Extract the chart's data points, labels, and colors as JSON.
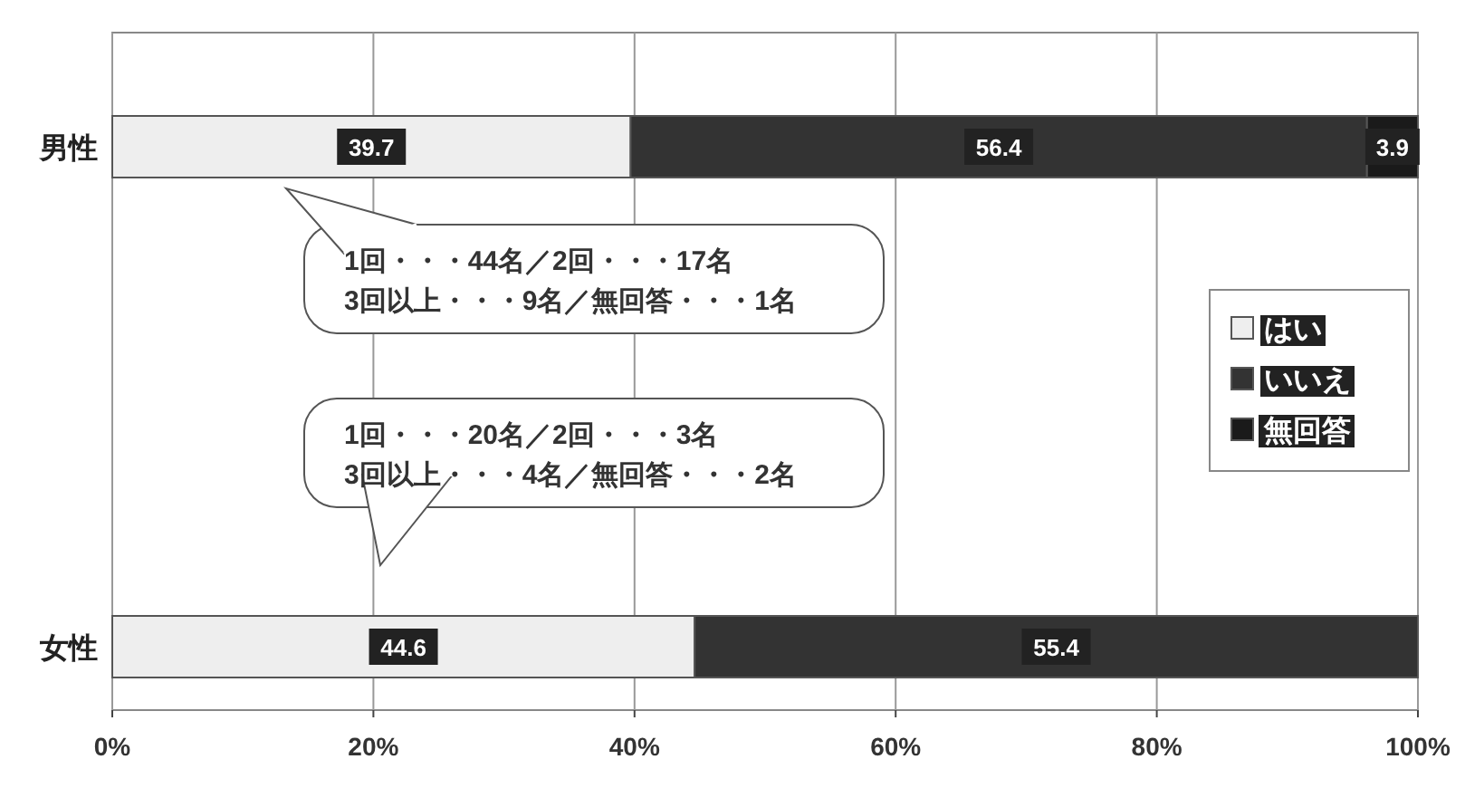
{
  "chart_data": {
    "type": "bar",
    "orientation": "horizontal",
    "stacked": true,
    "categories": [
      "男性",
      "女性"
    ],
    "series": [
      {
        "name": "はい",
        "color": "#eeeeee",
        "values": [
          39.7,
          44.6
        ]
      },
      {
        "name": "いいえ",
        "color": "#333333",
        "values": [
          56.4,
          55.4
        ]
      },
      {
        "name": "無回答",
        "color": "#1a1a1a",
        "values": [
          3.9,
          null
        ]
      }
    ],
    "xlim": [
      0,
      100
    ],
    "xticks": [
      {
        "value": 0,
        "label": "0%"
      },
      {
        "value": 20,
        "label": "20%"
      },
      {
        "value": 40,
        "label": "40%"
      },
      {
        "value": 60,
        "label": "60%"
      },
      {
        "value": 80,
        "label": "80%"
      },
      {
        "value": 100,
        "label": "100%"
      }
    ],
    "grid": "x",
    "legend": "right",
    "data_labels": true,
    "annotations": [
      "1回・・・44名／2回・・・17名\n3回以上・・・9名／無回答・・・1名",
      "1回・・・20名／2回・・・3名\n3回以上・・・4名／無回答・・・2名"
    ]
  }
}
